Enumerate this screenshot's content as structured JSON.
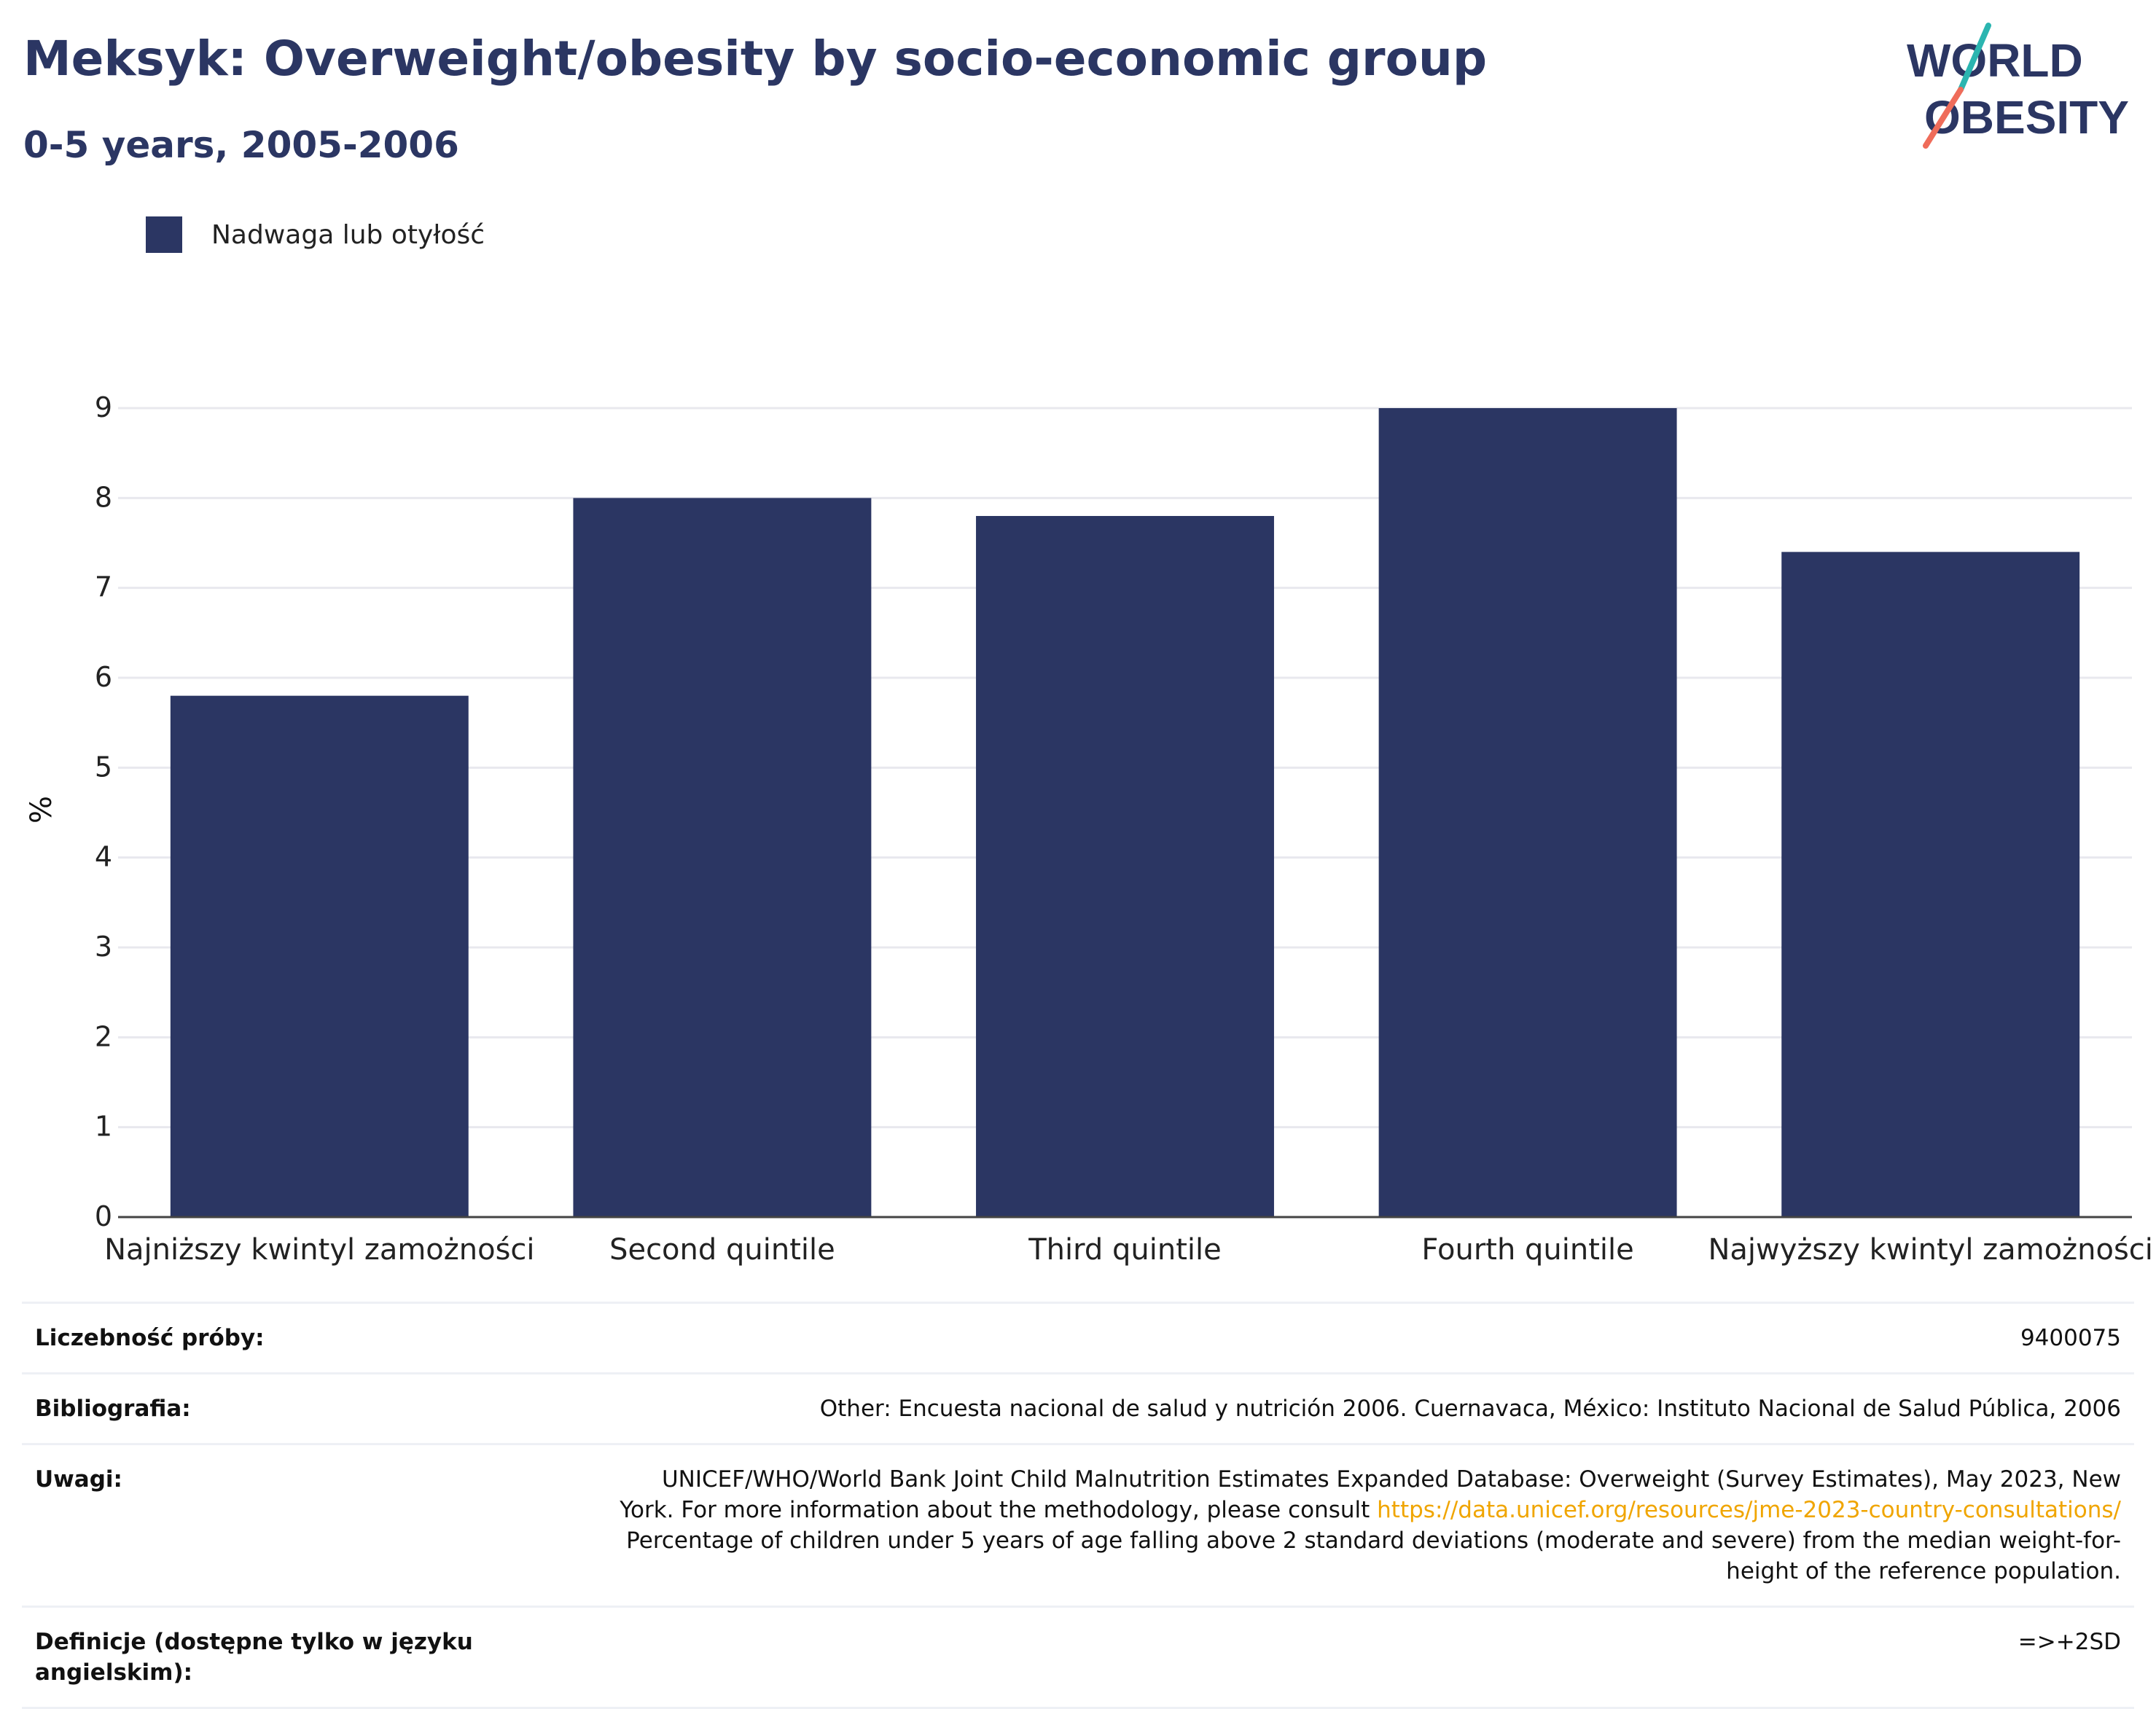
{
  "header": {
    "title": "Meksyk: Overweight/obesity by socio-economic group",
    "subtitle": "0-5 years, 2005-2006"
  },
  "logo": {
    "line1": "WORLD",
    "line2": "OBESITY"
  },
  "colors": {
    "bar": "#2b3663",
    "title": "#2b3663",
    "link": "#f0a500"
  },
  "chart_data": {
    "type": "bar",
    "categories": [
      "Najniższy kwintyl zamożności",
      "Second quintile",
      "Third quintile",
      "Fourth quintile",
      "Najwyższy kwintyl zamożności"
    ],
    "series": [
      {
        "name": "Nadwaga lub otyłość",
        "values": [
          5.8,
          8.0,
          7.8,
          9.0,
          7.4
        ]
      }
    ],
    "ylabel": "%",
    "ylim": [
      0,
      9
    ],
    "yticks": [
      0,
      1,
      2,
      3,
      4,
      5,
      6,
      7,
      8,
      9
    ],
    "grid": true,
    "legend_position": "top-left"
  },
  "info": {
    "sample_size_label": "Liczebność próby:",
    "sample_size_value": "9400075",
    "bibliography_label": "Bibliografia:",
    "bibliography_value": "Other: Encuesta nacional de salud y nutrición 2006. Cuernavaca, México: Instituto Nacional de Salud Pública, 2006",
    "notes_label": "Uwagi:",
    "notes_text_1": "UNICEF/WHO/World Bank Joint Child Malnutrition Estimates Expanded Database: Overweight (Survey Estimates), May 2023, New York. For more information about the methodology, please consult ",
    "notes_link": "https://data.unicef.org/resources/jme-2023-country-consultations/",
    "notes_text_2": " Percentage of children under 5 years of age falling above 2 standard deviations (moderate and severe) from the median weight-for-height of the reference population.",
    "definitions_label": "Definicje (dostępne tylko w języku angielskim):",
    "definitions_value": "=>+2SD"
  }
}
